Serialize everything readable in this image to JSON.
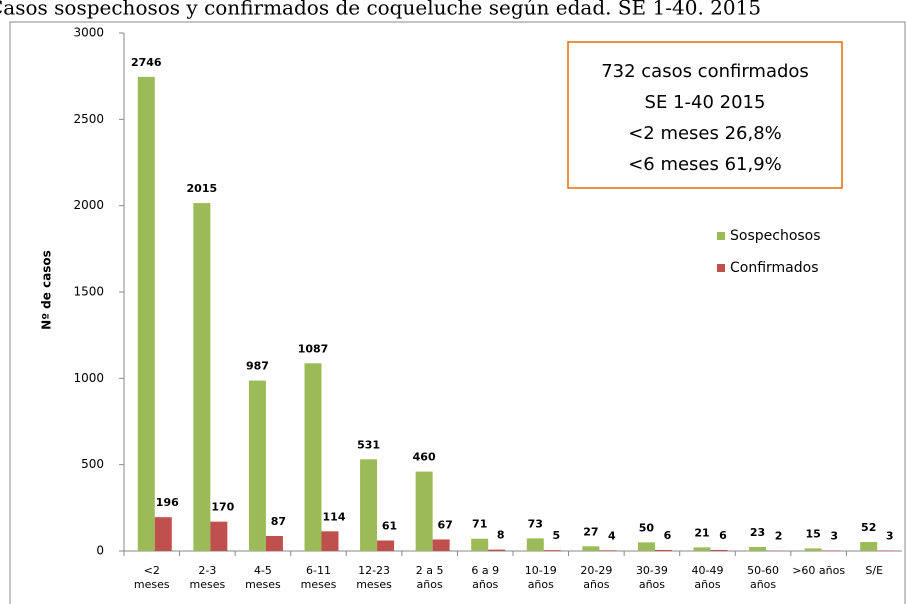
{
  "chart_data": {
    "type": "bar",
    "title": "Casos sospechosos y confirmados de coqueluche según edad. SE 1-40. 2015",
    "y_label": "Nº de casos",
    "annotation": [
      "732 casos confirmados",
      "SE 1-40 2015",
      "<2 meses 26,8%",
      "<6 meses 61,9%"
    ],
    "categories": [
      "<2\nmeses",
      "2-3\nmeses",
      "4-5\nmeses",
      "6-11\nmeses",
      "12-23\nmeses",
      "2 a 5\naños",
      "6 a 9\naños",
      "10-19\naños",
      "20-29\naños",
      "30-39\naños",
      "40-49\naños",
      "50-60\naños",
      ">60 años",
      "S/E"
    ],
    "series": [
      {
        "name": "Sospechosos",
        "color": "#9bbb59",
        "label_color": "#76923c",
        "values": [
          2746,
          2015,
          987,
          1087,
          531,
          460,
          71,
          73,
          27,
          50,
          21,
          23,
          15,
          52
        ]
      },
      {
        "name": "Confirmados",
        "color": "#c0504d",
        "label_color": "#e46c0a",
        "values": [
          196,
          170,
          87,
          114,
          61,
          67,
          8,
          5,
          4,
          6,
          6,
          2,
          3,
          3
        ]
      }
    ],
    "ylim": [
      0,
      3000
    ],
    "yticks": [
      0,
      500,
      1000,
      1500,
      2000,
      2500,
      3000
    ],
    "grid": false,
    "legend": "right"
  }
}
